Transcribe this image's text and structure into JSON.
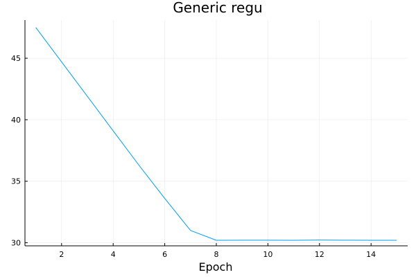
{
  "chart_data": {
    "type": "line",
    "title": "Generic regu",
    "xlabel": "Epoch",
    "ylabel": "",
    "xlim": [
      0.58,
      15.42
    ],
    "ylim": [
      29.75,
      48.1
    ],
    "xticks": [
      2,
      4,
      6,
      8,
      10,
      12,
      14
    ],
    "yticks": [
      30,
      35,
      40,
      45
    ],
    "grid": true,
    "legend": "none",
    "series": [
      {
        "color": "#009AFA",
        "x": [
          1,
          2,
          3,
          4,
          5,
          6,
          7,
          8,
          9,
          10,
          11,
          12,
          13,
          14,
          15
        ],
        "y": [
          47.5,
          44.7,
          41.9,
          39.1,
          36.3,
          33.6,
          31.0,
          30.2,
          30.21,
          30.21,
          30.2,
          30.22,
          30.21,
          30.2,
          30.2
        ]
      }
    ]
  }
}
